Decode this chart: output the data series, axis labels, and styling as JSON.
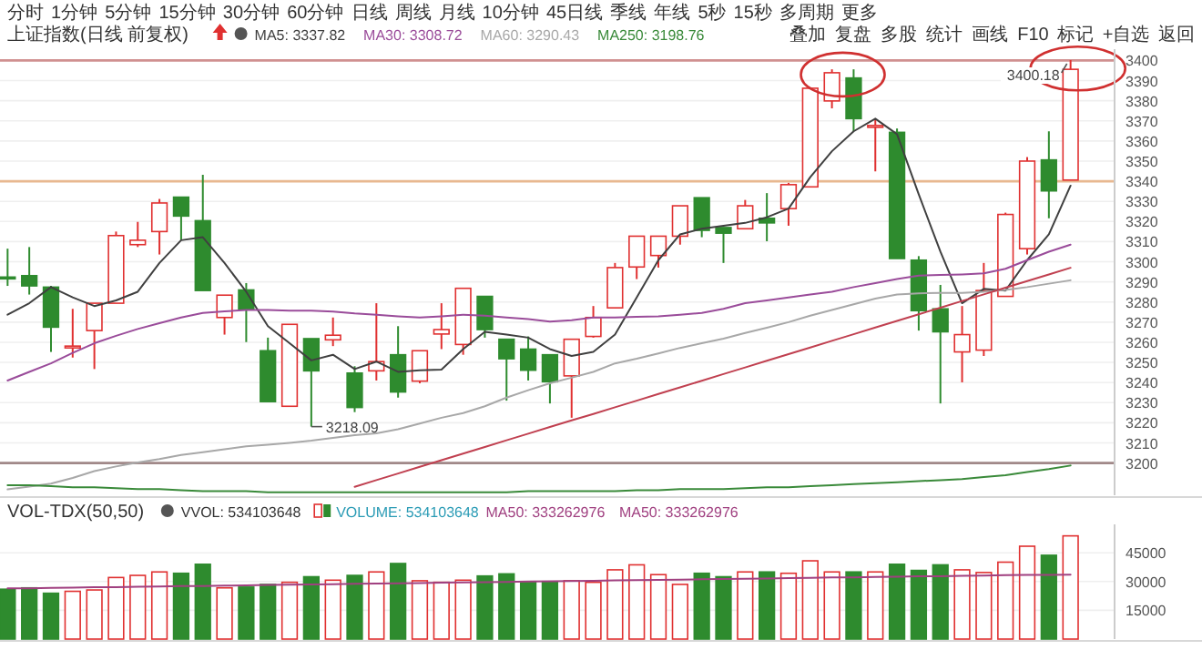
{
  "chart_data": [
    {
      "type": "candlestick",
      "title": "上证指数(日线 前复权)",
      "categories": [
        null,
        null,
        null,
        null,
        null,
        null,
        null,
        null,
        null,
        null,
        null,
        null,
        null,
        null,
        null,
        null,
        null,
        null,
        null,
        null,
        null,
        null,
        null,
        null,
        null,
        null,
        null,
        null,
        null,
        null,
        null,
        null,
        null,
        null,
        null,
        null,
        null,
        null,
        null,
        null,
        null,
        null,
        null,
        null,
        null,
        null,
        null,
        null,
        null,
        null
      ],
      "ohlc": [
        [
          3292.4,
          3306.5,
          3288.0,
          3292.0
        ],
        [
          3293.1,
          3307.3,
          3283.7,
          3288.0
        ],
        [
          3287.4,
          3288.0,
          3255.2,
          3267.5
        ],
        [
          3257.5,
          3276.6,
          3252.4,
          3258.1
        ],
        [
          3265.8,
          3279.4,
          3246.7,
          3279.4
        ],
        [
          3279.4,
          3315.0,
          3279.4,
          3313.0
        ],
        [
          3308.5,
          3319.8,
          3307.3,
          3310.7
        ],
        [
          3315.0,
          3331.2,
          3303.6,
          3329.2
        ],
        [
          3332.1,
          3332.1,
          3310.7,
          3322.7
        ],
        [
          3320.4,
          3343.2,
          3285.7,
          3285.7
        ],
        [
          3272.3,
          3283.4,
          3263.8,
          3283.4
        ],
        [
          3286.0,
          3289.4,
          3260.1,
          3276.6
        ],
        [
          3255.8,
          3262.3,
          3230.5,
          3230.5
        ],
        [
          3228.2,
          3268.9,
          3228.2,
          3268.9
        ],
        [
          3261.8,
          3261.8,
          3218.09,
          3245.8
        ],
        [
          3261.2,
          3272.3,
          3258.1,
          3263.5
        ],
        [
          3244.7,
          3248.1,
          3225.3,
          3227.6
        ],
        [
          3245.8,
          3279.4,
          3241.0,
          3250.4
        ],
        [
          3253.8,
          3268.0,
          3232.5,
          3235.3
        ],
        [
          3240.7,
          3255.8,
          3239.6,
          3255.8
        ],
        [
          3264.1,
          3279.4,
          3256.6,
          3266.3
        ],
        [
          3258.9,
          3286.8,
          3253.8,
          3286.8
        ],
        [
          3282.8,
          3282.8,
          3262.3,
          3266.3
        ],
        [
          3261.5,
          3261.5,
          3231.0,
          3251.8
        ],
        [
          3256.6,
          3262.9,
          3241.0,
          3246.1
        ],
        [
          3253.8,
          3253.8,
          3229.6,
          3240.4
        ],
        [
          3243.3,
          3261.5,
          3222.5,
          3261.5
        ],
        [
          3262.9,
          3278.0,
          3262.3,
          3272.3
        ],
        [
          3277.1,
          3299.4,
          3277.1,
          3297.1
        ],
        [
          3297.4,
          3312.7,
          3291.4,
          3312.7
        ],
        [
          3303.1,
          3312.7,
          3297.1,
          3312.7
        ],
        [
          3312.7,
          3327.8,
          3308.5,
          3327.8
        ],
        [
          3331.8,
          3331.8,
          3312.2,
          3315.6
        ],
        [
          3317.0,
          3317.0,
          3299.4,
          3314.2
        ],
        [
          3316.4,
          3330.7,
          3316.4,
          3327.8
        ],
        [
          3321.6,
          3334.1,
          3310.2,
          3319.3
        ],
        [
          3326.4,
          3339.2,
          3317.9,
          3338.3
        ],
        [
          3337.2,
          3386.2,
          3337.2,
          3386.2
        ],
        [
          3379.9,
          3395.6,
          3376.2,
          3393.9
        ],
        [
          3391.3,
          3395.6,
          3364.8,
          3371.1
        ],
        [
          3367.7,
          3370.5,
          3344.9,
          3367.7
        ],
        [
          3364.3,
          3366.2,
          3301.6,
          3301.6
        ],
        [
          3300.8,
          3302.8,
          3265.8,
          3275.7
        ],
        [
          3276.6,
          3288.5,
          3229.6,
          3265.2
        ],
        [
          3255.2,
          3278.0,
          3240.1,
          3263.8
        ],
        [
          3256.1,
          3299.4,
          3253.2,
          3285.7
        ],
        [
          3282.8,
          3324.4,
          3282.8,
          3323.5
        ],
        [
          3306.5,
          3352.0,
          3303.6,
          3350.0
        ],
        [
          3350.6,
          3364.8,
          3321.6,
          3335.2
        ],
        [
          3340.6,
          3400.18,
          3340.6,
          3395.6
        ]
      ],
      "series": [
        {
          "type": "line",
          "name": "MA5: 3337.82",
          "color": "#404040",
          "values": [
            3273.7,
            3279.4,
            3287.4,
            3282.3,
            3278.0,
            3280.8,
            3285.1,
            3299.4,
            3310.7,
            3312.2,
            3299.4,
            3285.1,
            3268.0,
            3259.5,
            3251.0,
            3253.8,
            3246.7,
            3250.4,
            3245.3,
            3246.1,
            3246.4,
            3256.6,
            3265.2,
            3263.8,
            3262.3,
            3256.6,
            3253.2,
            3255.2,
            3263.8,
            3282.3,
            3300.8,
            3313.6,
            3316.4,
            3317.9,
            3319.3,
            3322.1,
            3326.4,
            3342.0,
            3354.9,
            3364.8,
            3371.1,
            3363.4,
            3333.5,
            3305.0,
            3279.4,
            3286.5,
            3285.7,
            3300.8,
            3313.6,
            3337.8
          ]
        },
        {
          "type": "line",
          "name": "MA30: 3308.72",
          "color": "#9a4c9a",
          "values": [
            3241.0,
            3245.3,
            3249.5,
            3254.7,
            3259.5,
            3263.2,
            3266.6,
            3269.5,
            3272.3,
            3274.6,
            3275.4,
            3276.0,
            3276.0,
            3275.7,
            3275.7,
            3275.2,
            3274.3,
            3273.7,
            3272.9,
            3272.3,
            3272.9,
            3273.7,
            3273.2,
            3272.3,
            3271.5,
            3270.3,
            3270.9,
            3272.3,
            3272.3,
            3272.6,
            3272.9,
            3273.7,
            3274.6,
            3276.6,
            3279.4,
            3280.8,
            3282.3,
            3283.7,
            3285.1,
            3287.4,
            3289.4,
            3291.4,
            3293.1,
            3293.4,
            3293.7,
            3294.2,
            3296.5,
            3300.8,
            3305.0,
            3308.5
          ]
        },
        {
          "type": "line",
          "name": "MA60: 3290.43",
          "color": "#a8a8a8",
          "values": [
            3186.9,
            3188.3,
            3189.8,
            3192.6,
            3196.0,
            3198.3,
            3200.3,
            3202.0,
            3204.0,
            3205.4,
            3206.8,
            3208.3,
            3209.1,
            3210.0,
            3211.1,
            3212.5,
            3213.9,
            3214.8,
            3216.8,
            3219.6,
            3222.5,
            3224.8,
            3228.2,
            3232.5,
            3236.2,
            3239.6,
            3242.4,
            3245.3,
            3249.5,
            3251.8,
            3254.4,
            3257.2,
            3259.5,
            3261.8,
            3264.6,
            3267.2,
            3270.0,
            3273.2,
            3276.0,
            3278.9,
            3281.7,
            3283.7,
            3284.3,
            3284.5,
            3284.5,
            3285.1,
            3286.0,
            3287.4,
            3289.1,
            3290.8
          ]
        },
        {
          "type": "line",
          "name": "MA250: 3198.76",
          "color": "#3a8a3a",
          "values": [
            3189,
            3189,
            3188.5,
            3188,
            3188,
            3187.5,
            3187,
            3187,
            3186.5,
            3186,
            3186,
            3186,
            3185.5,
            3185.5,
            3185.5,
            3185.5,
            3185.5,
            3185.5,
            3185.5,
            3185.5,
            3185.5,
            3185.5,
            3185.5,
            3185.5,
            3186,
            3186,
            3186,
            3186,
            3186,
            3186.5,
            3186.5,
            3187,
            3187,
            3187,
            3187.5,
            3188,
            3188,
            3188.5,
            3189,
            3189.5,
            3190,
            3190.5,
            3191,
            3191.5,
            3192,
            3193,
            3194,
            3195.5,
            3197,
            3198.76
          ]
        },
        {
          "type": "line",
          "color": "#c04050",
          "values": [
            null,
            null,
            null,
            null,
            null,
            null,
            null,
            null,
            null,
            null,
            null,
            null,
            null,
            null,
            null,
            null,
            3188.2,
            3191.5,
            3194.8,
            3198.1,
            3201.4,
            3204.7,
            3208.0,
            3211.3,
            3214.6,
            3217.9,
            3221.2,
            3224.4,
            3227.7,
            3231.0,
            3234.3,
            3237.6,
            3240.9,
            3244.2,
            3247.5,
            3250.8,
            3254.1,
            3257.4,
            3260.7,
            3264.0,
            3267.3,
            3270.6,
            3273.9,
            3277.2,
            3280.5,
            3283.8,
            3287.1,
            3290.4,
            3293.7,
            3297.0
          ]
        }
      ],
      "ylim": [
        3184,
        3402
      ],
      "yticks": [
        3200,
        3210,
        3220,
        3230,
        3240,
        3250,
        3260,
        3270,
        3280,
        3290,
        3300,
        3310,
        3320,
        3330,
        3340,
        3350,
        3360,
        3370,
        3380,
        3390,
        3400
      ],
      "grid": "y",
      "legend": "top left",
      "ref_lines": [
        {
          "axis": "y",
          "value": 3400,
          "color": "#d09090"
        },
        {
          "axis": "y",
          "value": 3340,
          "color": "#e8b890"
        },
        {
          "axis": "y",
          "value": 3200,
          "color": "#a08888"
        }
      ],
      "annotations": [
        "分时",
        "1分钟",
        "5分钟",
        "15分钟",
        "30分钟",
        "60分钟",
        "日线",
        "周线",
        "月线",
        "10分钟",
        "45日线",
        "季线",
        "年线",
        "5秒",
        "15秒",
        "多周期",
        "更多",
        "叠加",
        "复盘",
        "多股",
        "统计",
        "画线",
        "F10",
        "标记",
        "+自选",
        "返回",
        {
          "text": "3218.09",
          "y": 3218.09
        },
        {
          "text": "3400.18",
          "y": 3400.18
        }
      ]
    },
    {
      "type": "bar",
      "title": "VOL-TDX(50,50)",
      "categories": [
        null,
        null,
        null,
        null,
        null,
        null,
        null,
        null,
        null,
        null,
        null,
        null,
        null,
        null,
        null,
        null,
        null,
        null,
        null,
        null,
        null,
        null,
        null,
        null,
        null,
        null,
        null,
        null,
        null,
        null,
        null,
        null,
        null,
        null,
        null,
        null,
        null,
        null,
        null,
        null,
        null,
        null,
        null,
        null,
        null,
        null,
        null,
        null,
        null,
        null
      ],
      "series": [
        {
          "type": "bar",
          "name": "VOLUME: 534103648",
          "values": [
            26000,
            26700,
            23900,
            24900,
            25600,
            32100,
            33200,
            35000,
            34300,
            39000,
            26700,
            27100,
            28500,
            29600,
            32500,
            30700,
            33200,
            35000,
            39400,
            30400,
            29600,
            30700,
            32900,
            34000,
            30000,
            30000,
            30400,
            29600,
            36100,
            38700,
            33600,
            28500,
            34300,
            32500,
            35000,
            35000,
            34300,
            40800,
            35000,
            35000,
            35000,
            39000,
            35800,
            38700,
            36100,
            34700,
            40100,
            48400,
            43700,
            53800
          ],
          "colors": [
            "#2e8b2e",
            "#2e8b2e",
            "#2e8b2e",
            "#e03030",
            "#e03030",
            "#e03030",
            "#e03030",
            "#e03030",
            "#2e8b2e",
            "#2e8b2e",
            "#e03030",
            "#2e8b2e",
            "#2e8b2e",
            "#e03030",
            "#2e8b2e",
            "#e03030",
            "#2e8b2e",
            "#e03030",
            "#2e8b2e",
            "#e03030",
            "#e03030",
            "#e03030",
            "#2e8b2e",
            "#2e8b2e",
            "#2e8b2e",
            "#2e8b2e",
            "#e03030",
            "#e03030",
            "#e03030",
            "#e03030",
            "#e03030",
            "#e03030",
            "#2e8b2e",
            "#2e8b2e",
            "#e03030",
            "#2e8b2e",
            "#e03030",
            "#e03030",
            "#e03030",
            "#2e8b2e",
            "#e03030",
            "#2e8b2e",
            "#2e8b2e",
            "#2e8b2e",
            "#e03030",
            "#e03030",
            "#e03030",
            "#e03030",
            "#2e8b2e",
            "#e03030"
          ]
        },
        {
          "type": "line",
          "name": "MA50: 333262976",
          "color": "#a04080",
          "values": [
            26400,
            26500,
            26700,
            26800,
            27000,
            27100,
            27300,
            27400,
            27600,
            27700,
            27900,
            28000,
            28200,
            28300,
            28500,
            28600,
            28800,
            28900,
            29100,
            29200,
            29400,
            29500,
            29700,
            29800,
            30000,
            30100,
            30300,
            30400,
            30600,
            30700,
            30900,
            31000,
            31200,
            31300,
            31500,
            31600,
            31800,
            31900,
            32100,
            32200,
            32400,
            32500,
            32700,
            32800,
            33000,
            33100,
            33300,
            33400,
            33500,
            33600
          ]
        }
      ],
      "ylim": [
        0,
        56000
      ],
      "yticks": [
        15000,
        30000,
        45000
      ],
      "grid": "y",
      "legend": "top left",
      "annotations": [
        "VVOL: 534103648",
        "MA50: 333262976"
      ]
    }
  ]
}
